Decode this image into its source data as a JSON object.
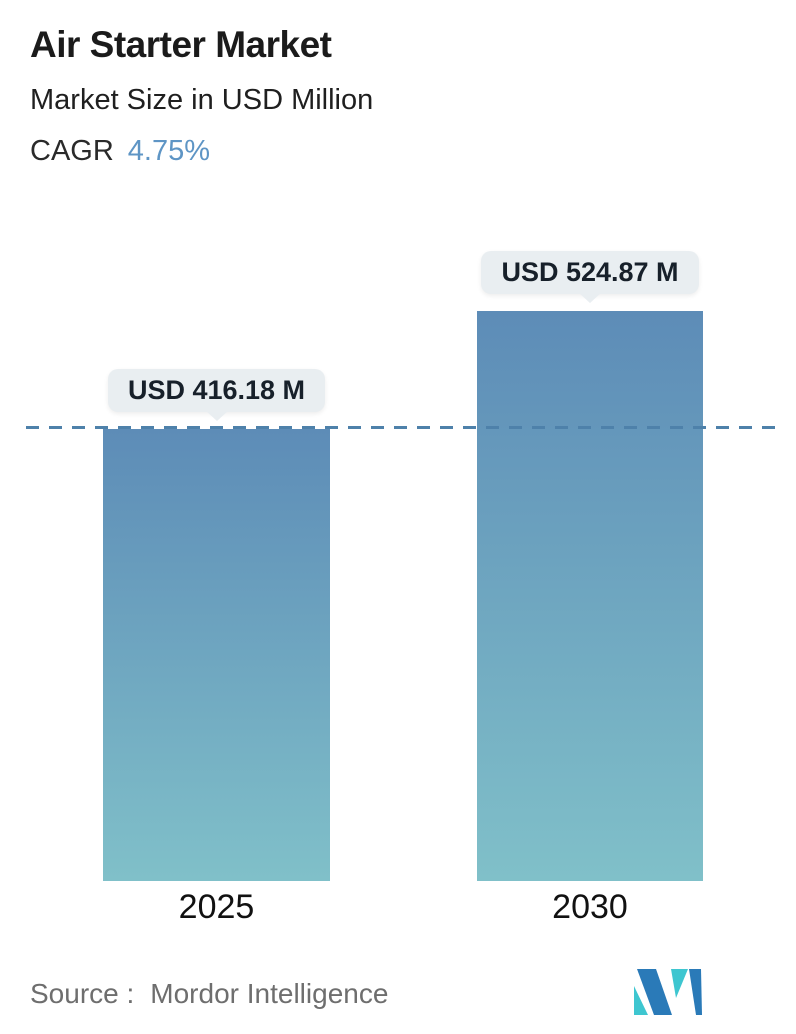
{
  "header": {
    "title": "Air Starter Market",
    "subtitle": "Market Size in USD Million",
    "cagr_label": "CAGR",
    "cagr_value": "4.75%"
  },
  "chart_data": {
    "type": "bar",
    "categories": [
      "2025",
      "2030"
    ],
    "values": [
      416.18,
      524.87
    ],
    "data_labels": [
      "USD 416.18 M",
      "USD 524.87 M"
    ],
    "title": "Air Starter Market",
    "ylabel": "Market Size in USD Million",
    "unit": "USD Million",
    "cagr_percent": 4.75,
    "dashed_reference_line_at": 416.18,
    "legend": "none",
    "grid": false,
    "bar_gradient": [
      "#5d8cb7",
      "#80c0c9"
    ]
  },
  "footer": {
    "source_label": "Source :",
    "source_value": "Mordor Intelligence"
  },
  "colors": {
    "accent_blue": "#5e95c5",
    "dashed_line": "#4e81aa",
    "tooltip_bg": "#e9eef1",
    "bar_top": "#5d8cb7",
    "bar_bottom": "#80c0c9",
    "logo_teal": "#3ec6d0",
    "logo_blue": "#2a7ab8",
    "title_text": "#1b1b1b",
    "source_text": "#6e6e6e"
  }
}
